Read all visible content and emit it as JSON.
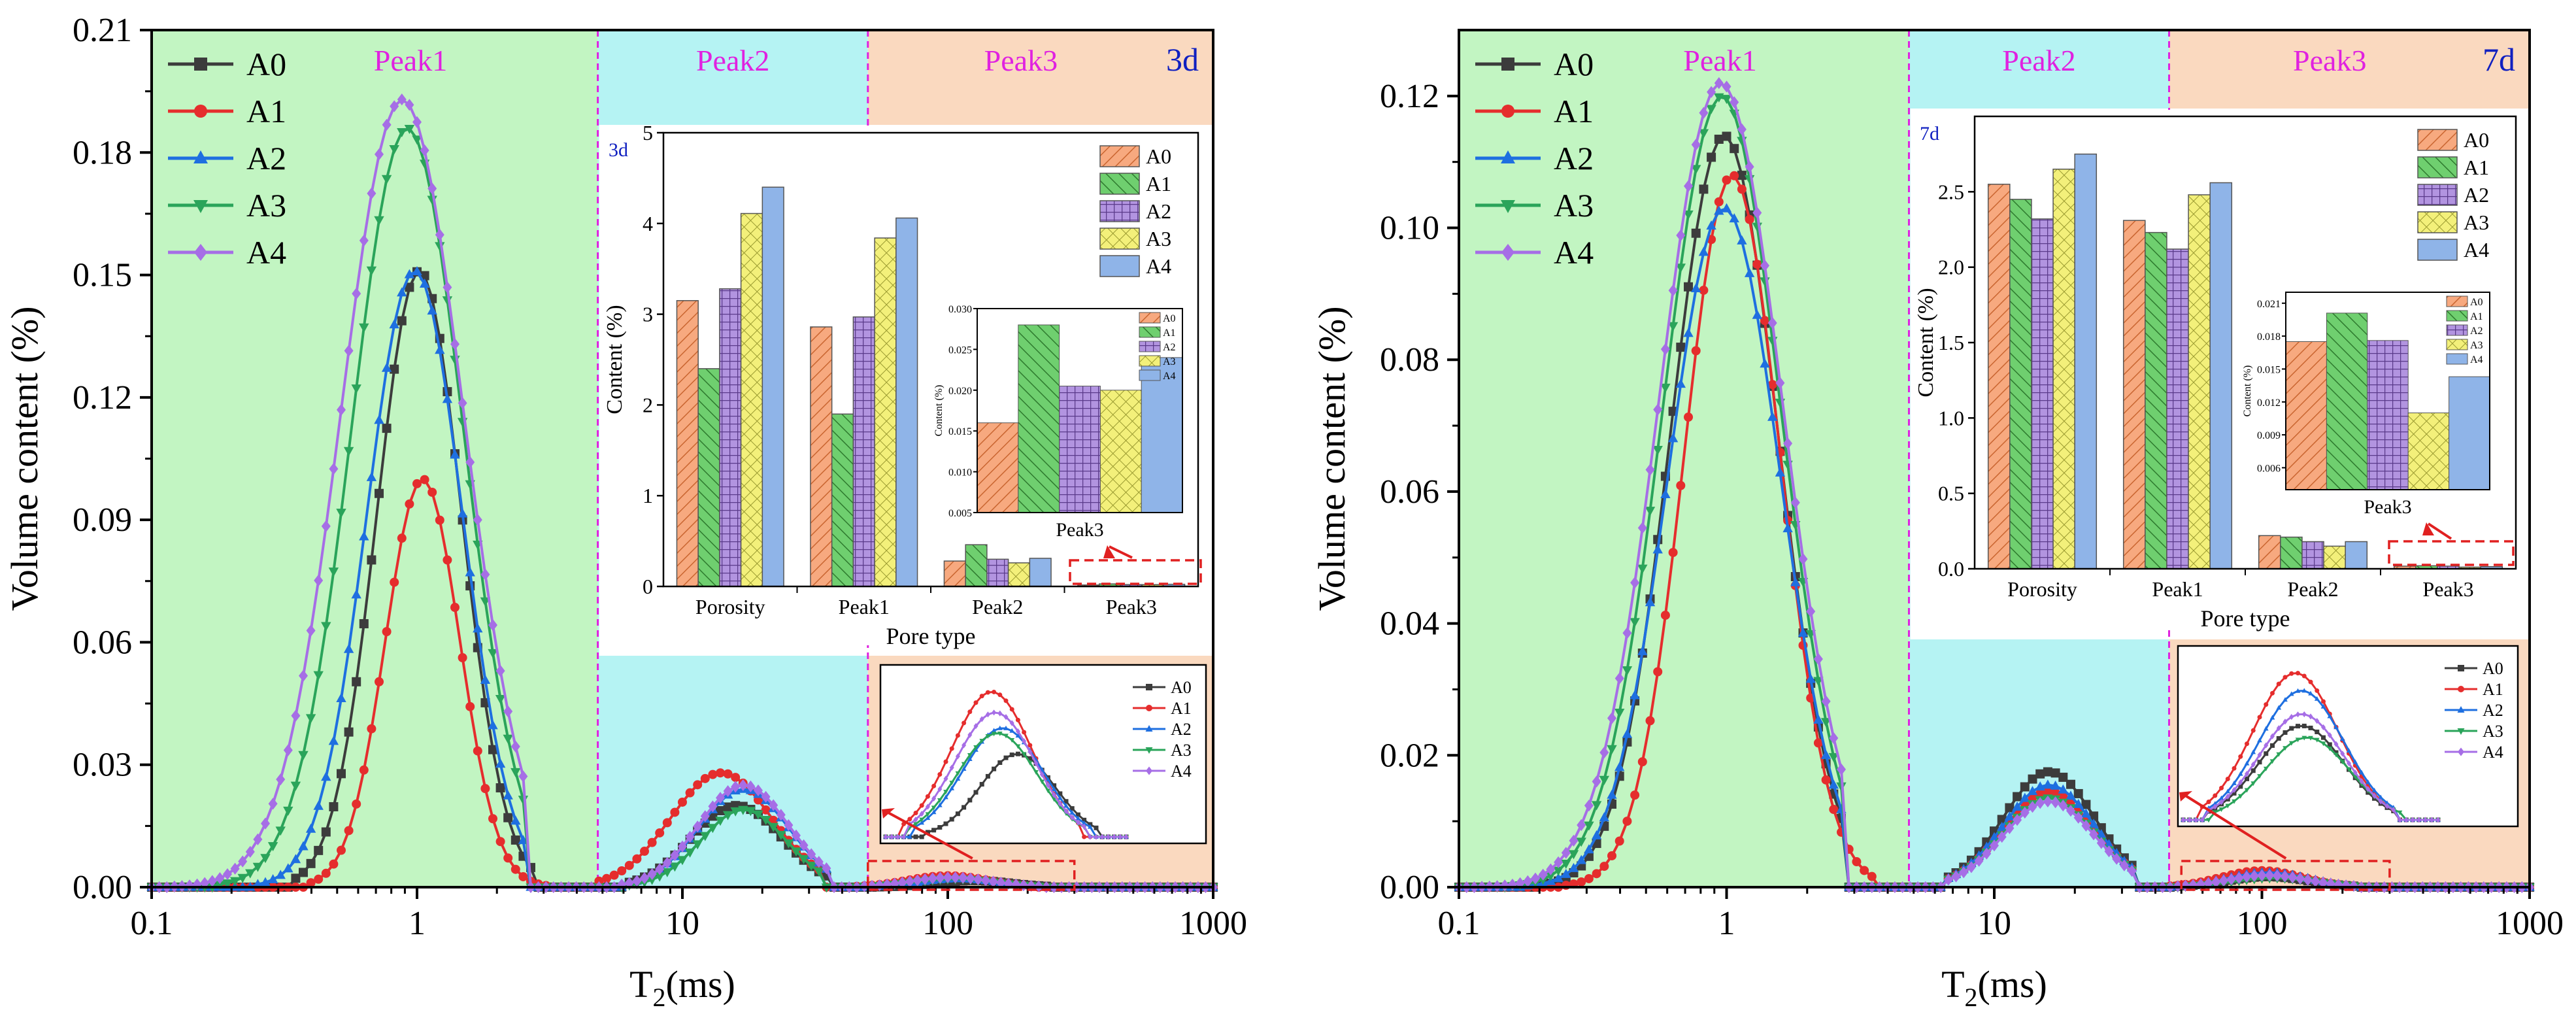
{
  "figure": {
    "panels": [
      "3d",
      "7d"
    ]
  },
  "chart_data": [
    {
      "type": "line",
      "panel": "3d",
      "title": "3d",
      "xlabel_main": "T",
      "xlabel_sub": "2",
      "xlabel_unit": "(ms)",
      "ylabel": "Volume content (%)",
      "xscale": "log",
      "xlim": [
        0.1,
        1000
      ],
      "ylim": [
        0,
        0.21
      ],
      "xticks": [
        0.1,
        1,
        10,
        100,
        1000
      ],
      "xtick_labels": [
        "0.1",
        "1",
        "10",
        "100",
        "1000"
      ],
      "yticks": [
        0,
        0.03,
        0.06,
        0.09,
        0.12,
        0.15,
        0.18,
        0.21
      ],
      "ytick_labels": [
        "0.00",
        "0.03",
        "0.06",
        "0.09",
        "0.12",
        "0.15",
        "0.18",
        "0.21"
      ],
      "regions": [
        {
          "label": "Peak1",
          "from": 0.1,
          "to": 4.8,
          "color": "#c2f5c2"
        },
        {
          "label": "Peak2",
          "from": 4.8,
          "to": 50,
          "color": "#b5f3f3"
        },
        {
          "label": "Peak3",
          "from": 50,
          "to": 1000,
          "color": "#fad9bf"
        }
      ],
      "boundary_color": "#e022e0",
      "legend": [
        "A0",
        "A1",
        "A2",
        "A3",
        "A4"
      ],
      "series": [
        {
          "name": "A0",
          "color": "#3c3c3c",
          "marker": "square",
          "peaks": [
            {
              "mu": 1.02,
              "s": 0.16,
              "h": 0.151,
              "lo": 0.34,
              "hi": 2.7
            },
            {
              "mu": 16,
              "s": 0.17,
              "h": 0.02,
              "lo": 6,
              "hi": 35
            },
            {
              "mu": 125,
              "s": 0.14,
              "h": 0.0016,
              "lo": 55,
              "hi": 250
            }
          ]
        },
        {
          "name": "A1",
          "color": "#e52d2d",
          "marker": "circle",
          "peaks": [
            {
              "mu": 1.05,
              "s": 0.14,
              "h": 0.1,
              "lo": 0.38,
              "hi": 3.2
            },
            {
              "mu": 14,
              "s": 0.19,
              "h": 0.028,
              "lo": 4.6,
              "hi": 34
            },
            {
              "mu": 100,
              "s": 0.15,
              "h": 0.0028,
              "lo": 45,
              "hi": 220
            }
          ]
        },
        {
          "name": "A2",
          "color": "#1e6fe0",
          "marker": "triangle",
          "peaks": [
            {
              "mu": 0.98,
              "s": 0.18,
              "h": 0.151,
              "lo": 0.25,
              "hi": 2.6
            },
            {
              "mu": 17,
              "s": 0.17,
              "h": 0.024,
              "lo": 6,
              "hi": 35
            },
            {
              "mu": 110,
              "s": 0.15,
              "h": 0.0021,
              "lo": 50,
              "hi": 235
            }
          ]
        },
        {
          "name": "A3",
          "color": "#2aa45a",
          "marker": "tri-down",
          "peaks": [
            {
              "mu": 0.92,
              "s": 0.21,
              "h": 0.186,
              "lo": 0.18,
              "hi": 2.6
            },
            {
              "mu": 17,
              "s": 0.16,
              "h": 0.019,
              "lo": 6.2,
              "hi": 34
            },
            {
              "mu": 105,
              "s": 0.15,
              "h": 0.002,
              "lo": 48,
              "hi": 225
            }
          ]
        },
        {
          "name": "A4",
          "color": "#a66ee6",
          "marker": "diamond",
          "peaks": [
            {
              "mu": 0.88,
              "s": 0.23,
              "h": 0.193,
              "lo": 0.12,
              "hi": 2.6
            },
            {
              "mu": 17,
              "s": 0.17,
              "h": 0.025,
              "lo": 5.8,
              "hi": 35
            },
            {
              "mu": 103,
              "s": 0.15,
              "h": 0.0024,
              "lo": 47,
              "hi": 225
            }
          ]
        }
      ],
      "inset_bar": {
        "label": "3d",
        "ylabel": "Content (%)",
        "xlabel": "Pore type",
        "ylim": [
          0,
          5
        ],
        "yticks": [
          0,
          1,
          2,
          3,
          4,
          5
        ],
        "ytick_labels": [
          "0",
          "1",
          "2",
          "3",
          "4",
          "5"
        ],
        "categories": [
          "Porosity",
          "Peak1",
          "Peak2",
          "Peak3"
        ],
        "series": [
          {
            "name": "A0",
            "values": [
              3.15,
              2.86,
              0.28,
              0.016
            ]
          },
          {
            "name": "A1",
            "values": [
              2.4,
              1.9,
              0.46,
              0.028
            ]
          },
          {
            "name": "A2",
            "values": [
              3.28,
              2.97,
              0.3,
              0.0205
            ]
          },
          {
            "name": "A3",
            "values": [
              4.11,
              3.84,
              0.26,
              0.02
            ]
          },
          {
            "name": "A4",
            "values": [
              4.4,
              4.06,
              0.31,
              0.024
            ]
          }
        ],
        "zoom": {
          "xlabel": "Peak3",
          "ylabel": "Content (%)",
          "ylim": [
            0.005,
            0.03
          ],
          "yticks": [
            0.005,
            0.01,
            0.015,
            0.02,
            0.025,
            0.03
          ],
          "ytick_labels": [
            "0.005",
            "0.010",
            "0.015",
            "0.020",
            "0.025",
            "0.030"
          ]
        }
      },
      "inset_line": {
        "legend": [
          "A0",
          "A1",
          "A2",
          "A3",
          "A4"
        ]
      }
    },
    {
      "type": "line",
      "panel": "7d",
      "title": "7d",
      "xlabel_main": "T",
      "xlabel_sub": "2",
      "xlabel_unit": "(ms)",
      "ylabel": "Volume content (%)",
      "xscale": "log",
      "xlim": [
        0.1,
        1000
      ],
      "ylim": [
        0,
        0.13
      ],
      "xticks": [
        0.1,
        1,
        10,
        100,
        1000
      ],
      "xtick_labels": [
        "0.1",
        "1",
        "10",
        "100",
        "1000"
      ],
      "yticks": [
        0,
        0.02,
        0.04,
        0.06,
        0.08,
        0.1,
        0.12
      ],
      "ytick_labels": [
        "0.00",
        "0.02",
        "0.04",
        "0.06",
        "0.08",
        "0.10",
        "0.12"
      ],
      "regions": [
        {
          "label": "Peak1",
          "from": 0.1,
          "to": 4.8,
          "color": "#c2f5c2"
        },
        {
          "label": "Peak2",
          "from": 4.8,
          "to": 45,
          "color": "#b5f3f3"
        },
        {
          "label": "Peak3",
          "from": 45,
          "to": 1000,
          "color": "#fad9bf"
        }
      ],
      "boundary_color": "#e022e0",
      "legend": [
        "A0",
        "A1",
        "A2",
        "A3",
        "A4"
      ],
      "series": [
        {
          "name": "A0",
          "color": "#3c3c3c",
          "marker": "square",
          "peaks": [
            {
              "mu": 0.98,
              "s": 0.2,
              "h": 0.114,
              "lo": 0.2,
              "hi": 2.8
            },
            {
              "mu": 16,
              "s": 0.17,
              "h": 0.0175,
              "lo": 6.5,
              "hi": 34
            },
            {
              "mu": 105,
              "s": 0.15,
              "h": 0.0016,
              "lo": 48,
              "hi": 230
            }
          ]
        },
        {
          "name": "A1",
          "color": "#e52d2d",
          "marker": "circle",
          "peaks": [
            {
              "mu": 1.05,
              "s": 0.18,
              "h": 0.108,
              "lo": 0.24,
              "hi": 3.5
            },
            {
              "mu": 16,
              "s": 0.17,
              "h": 0.0145,
              "lo": 6.5,
              "hi": 34
            },
            {
              "mu": 100,
              "s": 0.15,
              "h": 0.0025,
              "lo": 45,
              "hi": 225
            }
          ]
        },
        {
          "name": "A2",
          "color": "#1e6fe0",
          "marker": "triangle",
          "peaks": [
            {
              "mu": 0.98,
              "s": 0.21,
              "h": 0.103,
              "lo": 0.18,
              "hi": 2.7
            },
            {
              "mu": 16,
              "s": 0.17,
              "h": 0.0155,
              "lo": 6.5,
              "hi": 34
            },
            {
              "mu": 105,
              "s": 0.15,
              "h": 0.0022,
              "lo": 48,
              "hi": 230
            }
          ]
        },
        {
          "name": "A3",
          "color": "#2aa45a",
          "marker": "tri-down",
          "peaks": [
            {
              "mu": 0.96,
              "s": 0.22,
              "h": 0.12,
              "lo": 0.15,
              "hi": 2.7
            },
            {
              "mu": 16,
              "s": 0.17,
              "h": 0.0135,
              "lo": 6.5,
              "hi": 34
            },
            {
              "mu": 110,
              "s": 0.15,
              "h": 0.0014,
              "lo": 50,
              "hi": 235
            }
          ]
        },
        {
          "name": "A4",
          "color": "#a66ee6",
          "marker": "diamond",
          "peaks": [
            {
              "mu": 0.95,
              "s": 0.23,
              "h": 0.122,
              "lo": 0.12,
              "hi": 2.7
            },
            {
              "mu": 16,
              "s": 0.17,
              "h": 0.013,
              "lo": 6.5,
              "hi": 34
            },
            {
              "mu": 105,
              "s": 0.15,
              "h": 0.0018,
              "lo": 48,
              "hi": 230
            }
          ]
        }
      ],
      "inset_bar": {
        "label": "7d",
        "ylabel": "Content (%)",
        "xlabel": "Pore type",
        "ylim": [
          0,
          3
        ],
        "yticks": [
          0,
          0.5,
          1,
          1.5,
          2,
          2.5
        ],
        "ytick_labels": [
          "0.0",
          "0.5",
          "1.0",
          "1.5",
          "2.0",
          "2.5"
        ],
        "categories": [
          "Porosity",
          "Peak1",
          "Peak2",
          "Peak3"
        ],
        "series": [
          {
            "name": "A0",
            "values": [
              2.55,
              2.31,
              0.22,
              0.0175
            ]
          },
          {
            "name": "A1",
            "values": [
              2.45,
              2.23,
              0.21,
              0.0201
            ]
          },
          {
            "name": "A2",
            "values": [
              2.32,
              2.12,
              0.18,
              0.0176
            ]
          },
          {
            "name": "A3",
            "values": [
              2.65,
              2.48,
              0.15,
              0.011
            ]
          },
          {
            "name": "A4",
            "values": [
              2.75,
              2.56,
              0.18,
              0.0143
            ]
          }
        ],
        "zoom": {
          "xlabel": "Peak3",
          "ylabel": "Content (%)",
          "ylim": [
            0.004,
            0.022
          ],
          "yticks": [
            0.006,
            0.009,
            0.012,
            0.015,
            0.018,
            0.021
          ],
          "ytick_labels": [
            "0.006",
            "0.009",
            "0.012",
            "0.015",
            "0.018",
            "0.021"
          ]
        }
      },
      "inset_line": {
        "legend": [
          "A0",
          "A1",
          "A2",
          "A3",
          "A4"
        ]
      }
    }
  ],
  "styles": {
    "bar_colors": [
      "#f7a97f",
      "#6fcf6f",
      "#b294e0",
      "#f3f07a",
      "#8fb4e8"
    ],
    "hatch_colors": [
      "#c96530",
      "#2e7a2e",
      "#5a3a8a",
      "#9a9a30",
      "#4a76b0"
    ],
    "callout_red": "#e02020",
    "panel_title_blue": "#1020c0",
    "peak_label_magenta": "#e022e0"
  }
}
